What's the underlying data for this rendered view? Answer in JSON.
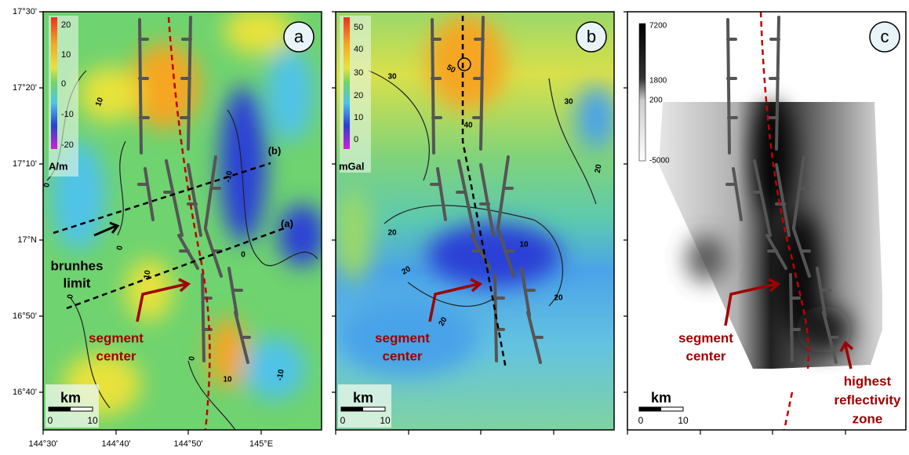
{
  "axes": {
    "latitude_labels": [
      "17°30'",
      "17°20'",
      "17°10'",
      "17°N",
      "16°50'",
      "16°40'"
    ],
    "longitude_labels": [
      "144°30'",
      "144°40'",
      "144°50'",
      "145°E"
    ]
  },
  "panels": [
    {
      "label": "a",
      "colorbar": {
        "ticks": [
          20,
          10,
          0,
          -10,
          -20
        ],
        "unit": "A/m"
      },
      "contour_labels": [
        10,
        -10,
        0,
        0,
        0,
        0,
        10,
        0,
        10,
        -10
      ],
      "profile_labels": [
        "(b)",
        "(a)"
      ],
      "annotation": [
        "brunhes",
        "limit"
      ],
      "segment_center": [
        "segment",
        "center"
      ],
      "scale_bar": {
        "unit": "km",
        "ticks": [
          0,
          10
        ]
      }
    },
    {
      "label": "b",
      "colorbar": {
        "ticks": [
          50,
          40,
          30,
          20,
          10,
          0
        ],
        "unit": "mGal"
      },
      "contour_labels": [
        50,
        30,
        30,
        40,
        20,
        20,
        10,
        20,
        20,
        20
      ],
      "segment_center": [
        "segment",
        "center"
      ],
      "scale_bar": {
        "unit": "km",
        "ticks": [
          0,
          10
        ]
      }
    },
    {
      "label": "c",
      "colorbar": {
        "ticks": [
          7200,
          1800,
          200,
          -5000
        ]
      },
      "segment_center": [
        "segment",
        "center"
      ],
      "annotation": [
        "highest",
        "reflectivity",
        "zone"
      ],
      "scale_bar": {
        "unit": "km",
        "ticks": [
          0,
          10
        ]
      }
    }
  ]
}
